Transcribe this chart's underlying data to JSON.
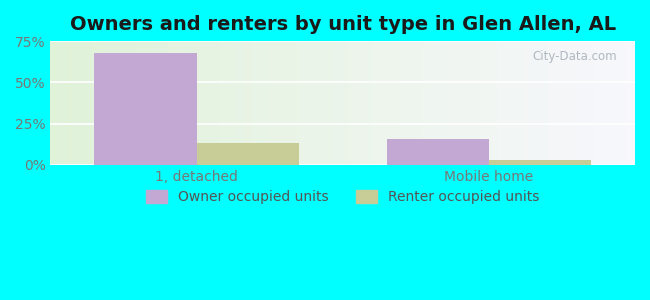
{
  "title": "Owners and renters by unit type in Glen Allen, AL",
  "categories": [
    "1, detached",
    "Mobile home"
  ],
  "owner_values": [
    68.0,
    16.0
  ],
  "renter_values": [
    13.0,
    3.0
  ],
  "owner_color": "#c4a8d4",
  "renter_color": "#c8cc96",
  "ylim": [
    0,
    75
  ],
  "yticks": [
    0,
    25,
    50,
    75
  ],
  "ytick_labels": [
    "0%",
    "25%",
    "50%",
    "75%"
  ],
  "bar_width": 0.35,
  "title_fontsize": 14,
  "tick_fontsize": 10,
  "legend_fontsize": 10,
  "outer_bg": "#00ffff",
  "watermark": "City-Data.com",
  "legend_owner": "Owner occupied units",
  "legend_renter": "Renter occupied units"
}
